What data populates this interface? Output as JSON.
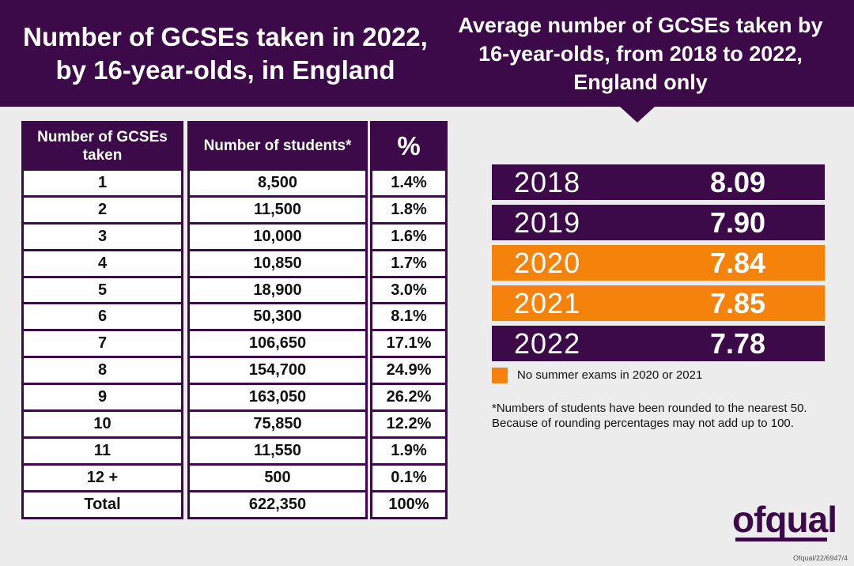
{
  "header": {
    "left_title_line1": "Number of GCSEs taken in 2022,",
    "left_title_line2": "by 16-year-olds, in England",
    "right_title_line1": "Average number of GCSEs taken by",
    "right_title_line2": "16-year-olds, from 2018 to 2022,",
    "right_title_line3": "England only"
  },
  "table": {
    "headers": [
      "Number of GCSEs taken",
      "Number of students*",
      "%"
    ],
    "rows": [
      [
        "1",
        "8,500",
        "1.4%"
      ],
      [
        "2",
        "11,500",
        "1.8%"
      ],
      [
        "3",
        "10,000",
        "1.6%"
      ],
      [
        "4",
        "10,850",
        "1.7%"
      ],
      [
        "5",
        "18,900",
        "3.0%"
      ],
      [
        "6",
        "50,300",
        "8.1%"
      ],
      [
        "7",
        "106,650",
        "17.1%"
      ],
      [
        "8",
        "154,700",
        "24.9%"
      ],
      [
        "9",
        "163,050",
        "26.2%"
      ],
      [
        "10",
        "75,850",
        "12.2%"
      ],
      [
        "11",
        "11,550",
        "1.9%"
      ],
      [
        "12 +",
        "500",
        "0.1%"
      ],
      [
        "Total",
        "622,350",
        "100%"
      ]
    ]
  },
  "chart_data": {
    "type": "table",
    "title": "Average number of GCSEs taken by 16-year-olds, from 2018 to 2022, England only",
    "categories": [
      "2018",
      "2019",
      "2020",
      "2021",
      "2022"
    ],
    "values": [
      8.09,
      7.9,
      7.84,
      7.85,
      7.78
    ],
    "value_labels": [
      "8.09",
      "7.90",
      "7.84",
      "7.85",
      "7.78"
    ],
    "highlight": [
      "2020",
      "2021"
    ]
  },
  "colors": {
    "primary": "#3c0a49",
    "highlight": "#f5830b",
    "background": "#ececec"
  },
  "legend": {
    "text": "No summer exams in 2020 or 2021"
  },
  "footnote": "*Numbers of students have been rounded to the nearest 50. Because of rounding percentages may not add up to 100.",
  "logo": "ofqual",
  "reference": "Ofqual/22/6947/4"
}
